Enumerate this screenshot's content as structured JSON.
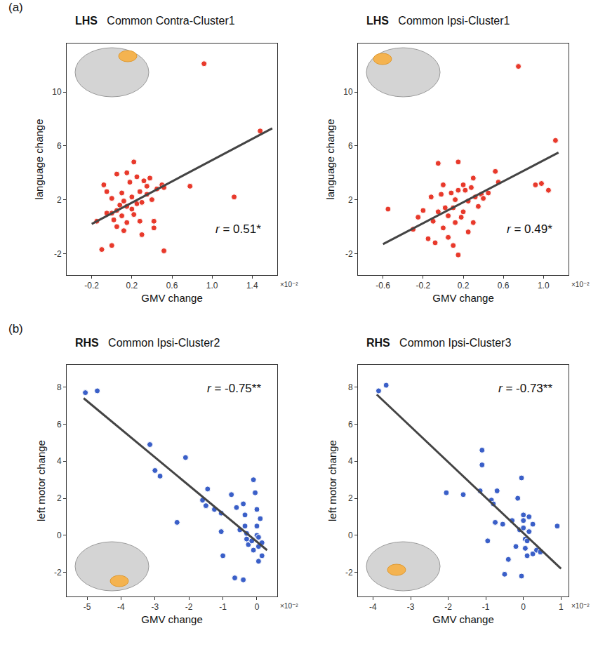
{
  "chart_data": [
    {
      "type": "scatter",
      "panel": "(a)",
      "group": "LHS",
      "title": "Common Contra-Cluster1",
      "x_label": "GMV change",
      "y_label": "language change",
      "color": "#e8392b",
      "marker": "circle",
      "annotations": [
        "r = 0.51*",
        "×10⁻²"
      ],
      "xlim": [
        -0.45,
        1.65
      ],
      "ylim": [
        -3.6,
        13.6
      ],
      "xticks": [
        -0.2,
        0.2,
        0.6,
        {
          "value": 1,
          "label": "1.0"
        },
        1.4
      ],
      "yticks": [
        -2,
        2,
        6,
        10
      ],
      "fit_line": {
        "x": [
          -0.2,
          1.6
        ],
        "y": [
          0.2,
          7.3
        ]
      },
      "x": [
        -0.15,
        -0.1,
        -0.05,
        -0.05,
        0.0,
        0.0,
        0.0,
        0.02,
        0.05,
        0.05,
        0.08,
        0.1,
        0.1,
        0.12,
        0.15,
        0.15,
        0.15,
        0.18,
        0.2,
        0.2,
        0.22,
        0.22,
        0.25,
        0.25,
        0.28,
        0.28,
        0.3,
        0.3,
        0.32,
        0.35,
        0.35,
        0.38,
        0.4,
        0.42,
        0.42,
        0.45,
        0.5,
        0.52,
        0.52,
        0.78,
        0.92,
        1.22,
        1.48,
        -0.08,
        0.05,
        0.12
      ],
      "y": [
        0.4,
        -1.7,
        2.6,
        1.0,
        2.1,
        1.0,
        -1.4,
        0.5,
        1.2,
        0.0,
        1.6,
        2.5,
        0.8,
        -0.3,
        4.0,
        1.5,
        0.3,
        3.3,
        1.3,
        2.2,
        4.8,
        0.9,
        3.7,
        1.7,
        2.6,
        0.4,
        1.8,
        -0.6,
        3.4,
        2.4,
        3.0,
        3.6,
        2.0,
        0.4,
        -0.1,
        2.8,
        3.1,
        2.9,
        -1.8,
        3.0,
        12.1,
        2.2,
        7.1,
        3.1,
        3.9,
        1.9
      ]
    },
    {
      "type": "scatter",
      "group": "LHS",
      "title": "Common Ipsi-Cluster1",
      "x_label": "GMV change",
      "y_label": "language change",
      "color": "#e8392b",
      "marker": "circle",
      "annotations": [
        "r = 0.49*",
        "×10⁻²"
      ],
      "xlim": [
        -0.85,
        1.25
      ],
      "ylim": [
        -3.6,
        13.6
      ],
      "xticks": [
        -0.6,
        -0.2,
        0.2,
        0.6,
        {
          "value": 1,
          "label": "1.0"
        }
      ],
      "yticks": [
        -2,
        2,
        6,
        10
      ],
      "fit_line": {
        "x": [
          -0.6,
          1.15
        ],
        "y": [
          -1.3,
          5.5
        ]
      },
      "x": [
        -0.55,
        -0.3,
        -0.25,
        -0.2,
        -0.15,
        -0.12,
        -0.1,
        -0.08,
        -0.05,
        -0.05,
        0.0,
        0.0,
        0.02,
        0.05,
        0.05,
        0.08,
        0.1,
        0.1,
        0.12,
        0.15,
        0.15,
        0.15,
        0.18,
        0.2,
        0.2,
        0.22,
        0.25,
        0.25,
        0.28,
        0.3,
        0.3,
        0.32,
        0.35,
        0.38,
        0.4,
        0.45,
        0.52,
        0.55,
        0.75,
        0.92,
        0.98,
        1.05,
        1.12,
        -0.02,
        0.12
      ],
      "y": [
        1.3,
        -0.2,
        0.7,
        1.2,
        -0.9,
        2.2,
        0.4,
        -1.2,
        4.7,
        1.1,
        3.1,
        -0.1,
        1.4,
        0.8,
        -0.8,
        2.5,
        1.4,
        -1.4,
        2.0,
        4.8,
        2.7,
        -2.1,
        0.7,
        3.1,
        1.1,
        2.7,
        1.9,
        -0.4,
        2.9,
        3.6,
        0.3,
        2.2,
        1.5,
        2.4,
        2.1,
        2.5,
        4.1,
        3.3,
        11.9,
        3.1,
        3.2,
        2.7,
        6.4,
        2.4,
        0.3
      ]
    },
    {
      "type": "scatter",
      "panel": "(b)",
      "group": "RHS",
      "title": "Common Ipsi-Cluster2",
      "x_label": "GMV change",
      "y_label": "left motor change",
      "color": "#3a5fc8",
      "marker": "circle",
      "annotations": [
        "r = -0.75**",
        "×10⁻²"
      ],
      "xlim": [
        -5.6,
        0.6
      ],
      "ylim": [
        -3.3,
        9.2
      ],
      "xticks": [
        -5,
        -4,
        -3,
        -2,
        -1,
        0
      ],
      "yticks": [
        -2,
        0,
        2,
        4,
        6,
        8
      ],
      "fit_line": {
        "x": [
          -5.1,
          0.3
        ],
        "y": [
          7.4,
          -0.8
        ]
      },
      "x": [
        -5.05,
        -4.7,
        -3.15,
        -3.0,
        -2.85,
        -2.35,
        -2.1,
        -1.6,
        -1.5,
        -1.45,
        -1.25,
        -1.05,
        -1.05,
        -1.0,
        -0.75,
        -0.6,
        -0.65,
        -0.4,
        -0.4,
        -0.35,
        -0.35,
        -0.3,
        -0.3,
        -0.25,
        -0.1,
        -0.1,
        0.0,
        0.0,
        0.0,
        0.05,
        0.05,
        0.05,
        0.1,
        0.15,
        0.15,
        -0.15,
        -0.05,
        -0.5
      ],
      "y": [
        7.7,
        7.8,
        4.9,
        3.5,
        3.2,
        0.7,
        4.2,
        1.9,
        1.6,
        2.5,
        1.4,
        1.2,
        0.2,
        -1.1,
        2.2,
        1.5,
        -2.3,
        -2.4,
        1.7,
        1.1,
        0.5,
        0.1,
        -0.2,
        -0.5,
        3.0,
        -0.8,
        1.4,
        0.5,
        0.0,
        -0.1,
        -0.6,
        -1.4,
        0.9,
        -0.4,
        -1.1,
        -0.3,
        2.3,
        0.3
      ]
    },
    {
      "type": "scatter",
      "group": "RHS",
      "title": "Common Ipsi-Cluster3",
      "x_label": "GMV change",
      "y_label": "left motor change",
      "color": "#3a5fc8",
      "marker": "circle",
      "annotations": [
        "r = -0.73**",
        "×10⁻²"
      ],
      "xlim": [
        -4.4,
        1.2
      ],
      "ylim": [
        -3.3,
        9.2
      ],
      "xticks": [
        -4,
        -3,
        -2,
        -1,
        0,
        1
      ],
      "yticks": [
        -2,
        0,
        2,
        4,
        6,
        8
      ],
      "fit_line": {
        "x": [
          -3.9,
          1.0
        ],
        "y": [
          7.6,
          -1.8
        ]
      },
      "x": [
        -3.85,
        -3.65,
        -2.05,
        -1.6,
        -1.1,
        -1.1,
        -1.15,
        -0.95,
        -0.85,
        -0.8,
        -0.75,
        -0.7,
        -0.55,
        -0.4,
        -0.5,
        -0.3,
        -0.15,
        -0.1,
        -0.05,
        -0.05,
        0.0,
        0.0,
        0.0,
        0.05,
        0.05,
        0.1,
        0.15,
        0.15,
        0.25,
        0.25,
        0.35,
        0.45,
        0.9,
        -0.2,
        0.1
      ],
      "y": [
        7.8,
        8.1,
        2.3,
        2.2,
        4.6,
        3.8,
        2.4,
        -0.3,
        1.9,
        1.7,
        0.7,
        2.4,
        0.6,
        -1.3,
        -2.1,
        0.8,
        2.0,
        0.3,
        -2.2,
        3.1,
        1.1,
        0.8,
        0.4,
        -0.2,
        -0.7,
        -1.1,
        1.0,
        0.2,
        0.6,
        -1.0,
        -0.8,
        -0.9,
        0.5,
        -0.6,
        -0.3
      ]
    }
  ]
}
